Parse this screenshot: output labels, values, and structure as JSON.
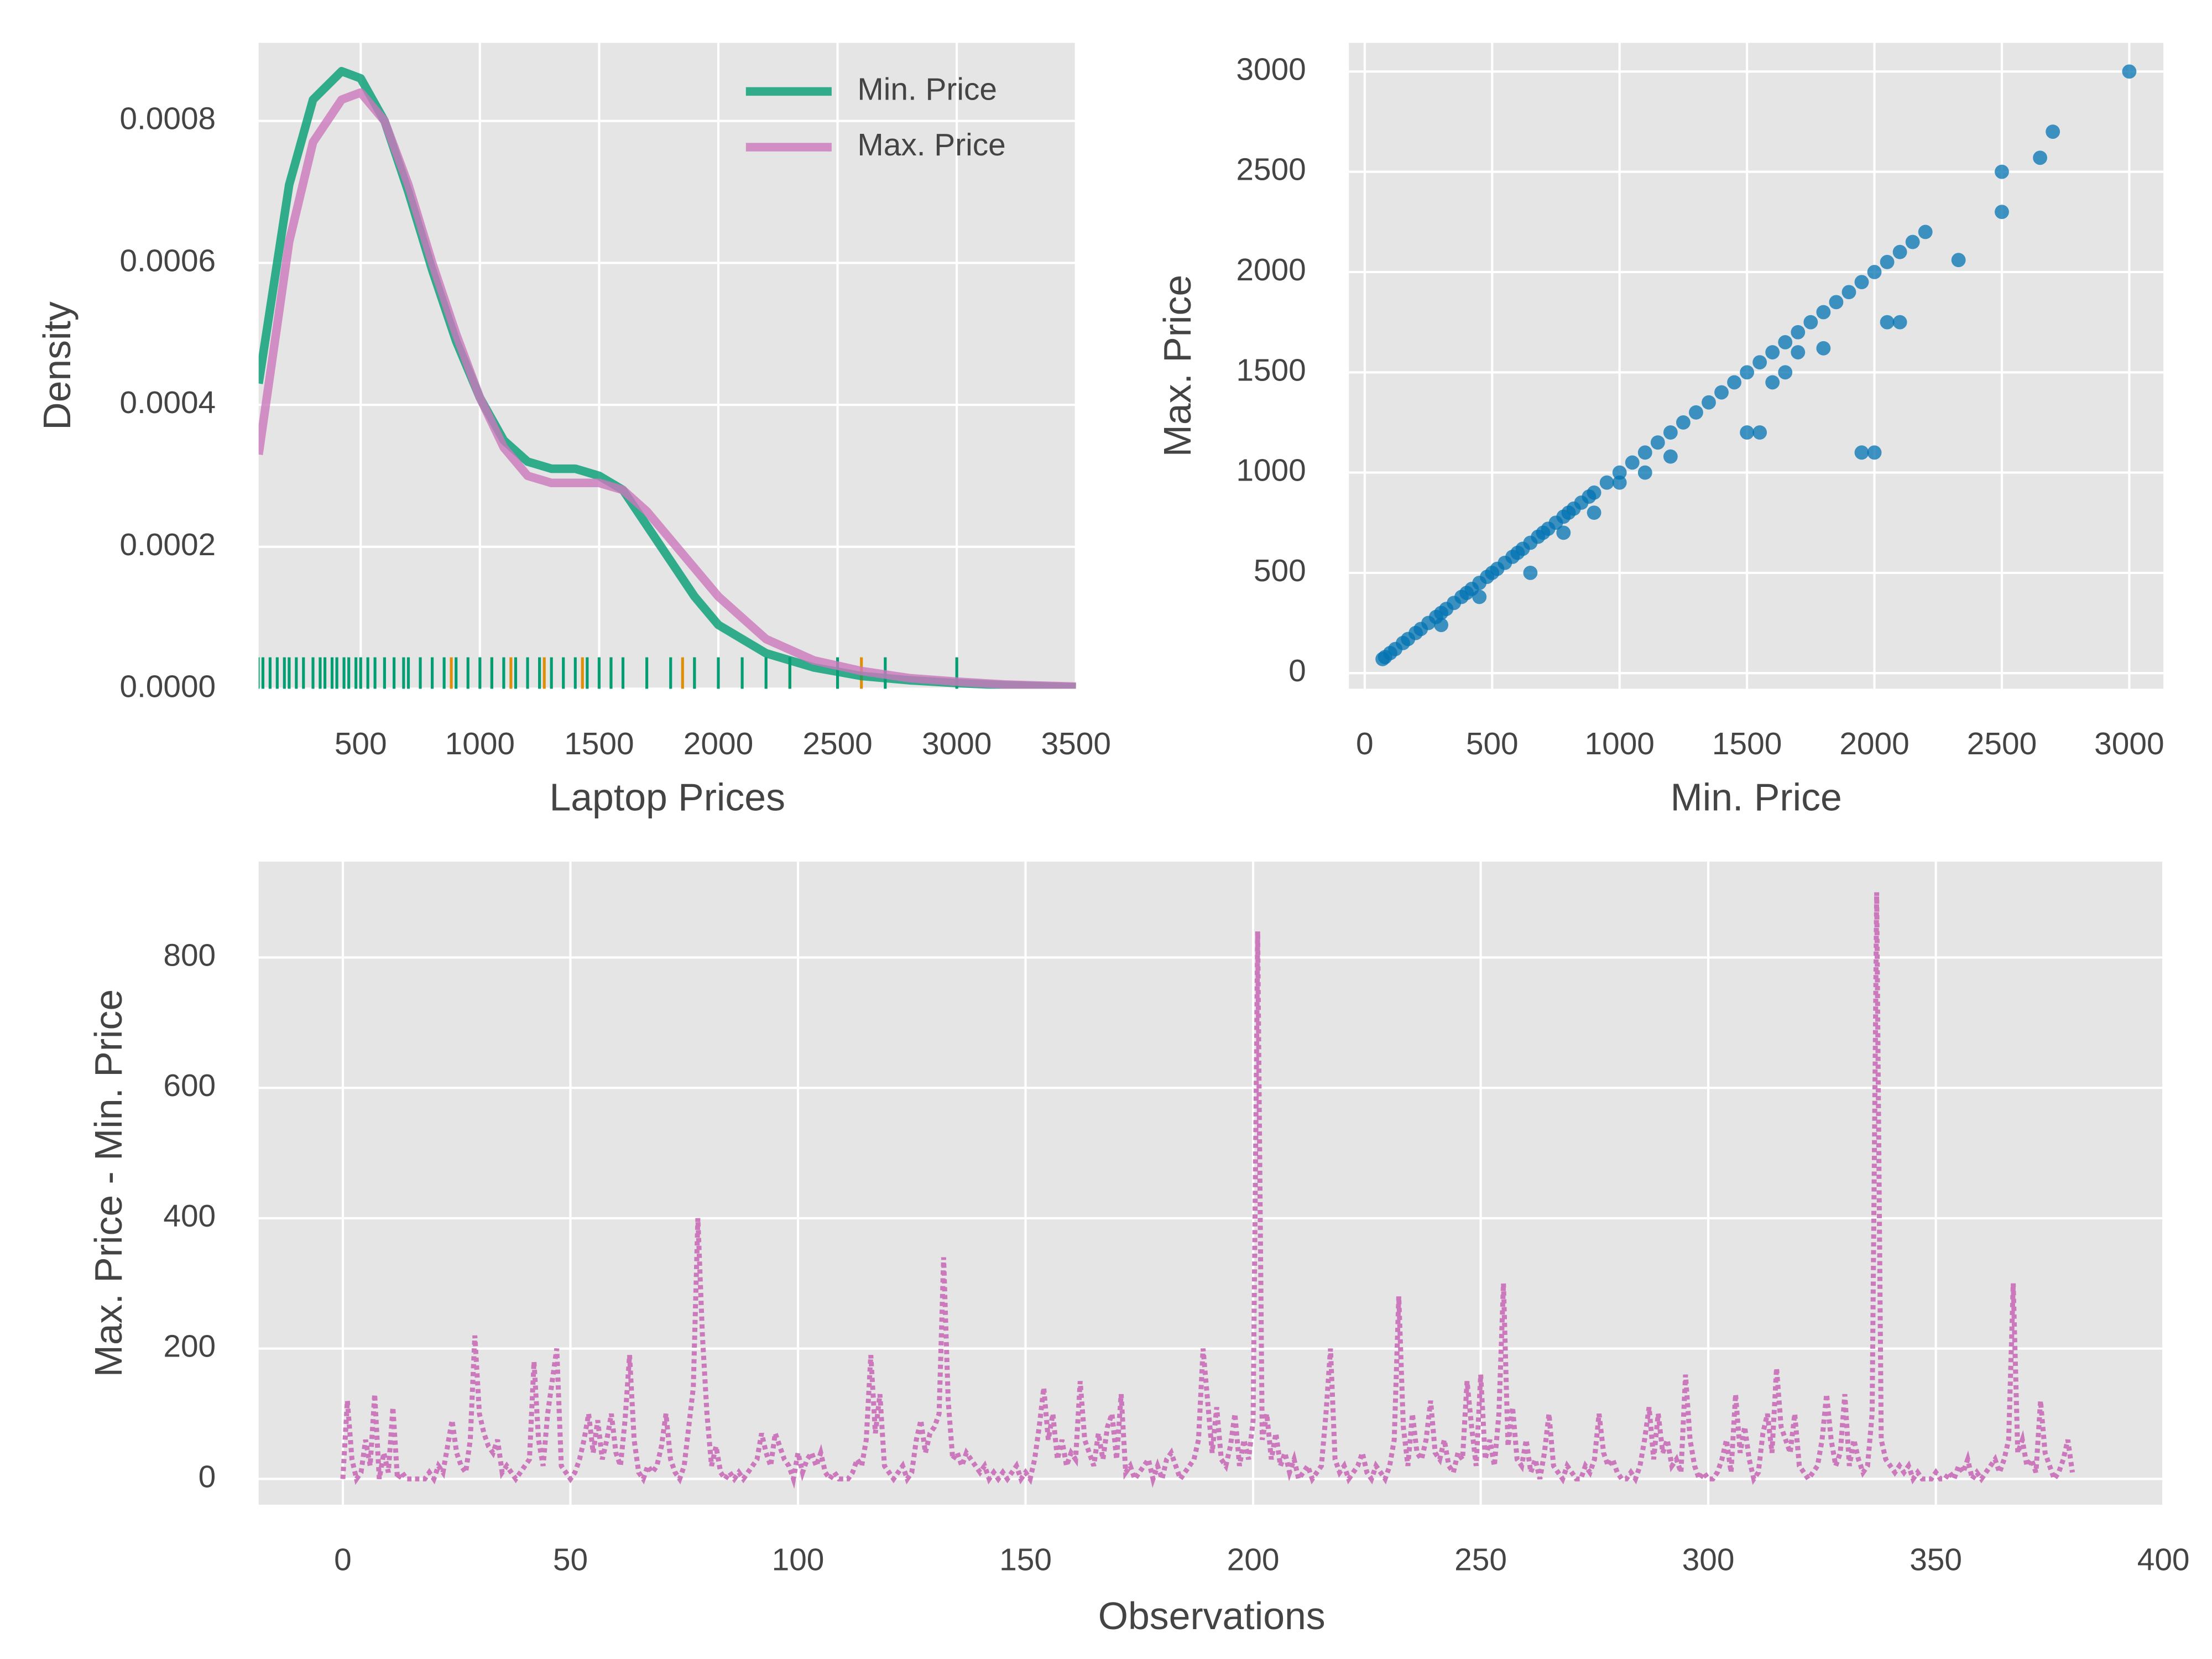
{
  "chart_data": [
    {
      "type": "line",
      "xlabel": "Laptop Prices",
      "ylabel": "Density",
      "legend": "upper right",
      "grid": true,
      "xlim": [
        72,
        3500
      ],
      "ylim": [
        0,
        0.00091
      ],
      "xticks": [
        500,
        1000,
        1500,
        2000,
        2500,
        3000,
        3500
      ],
      "yticks": [
        {
          "value": 0,
          "label": "0.0000"
        },
        {
          "value": 0.0002,
          "label": "0.0002"
        },
        {
          "value": 0.0004,
          "label": "0.0004"
        },
        {
          "value": 0.0006,
          "label": "0.0006"
        },
        {
          "value": 0.0008,
          "label": "0.0008"
        }
      ],
      "x": [
        72,
        200,
        300,
        420,
        500,
        600,
        700,
        800,
        900,
        1000,
        1100,
        1200,
        1300,
        1400,
        1500,
        1600,
        1700,
        1800,
        1900,
        2000,
        2200,
        2400,
        2600,
        2800,
        3000,
        3200,
        3500
      ],
      "series": [
        {
          "name": "Min. Price",
          "color": "#029e73",
          "rug_color": "#029e73",
          "values": [
            0.00043,
            0.00071,
            0.00083,
            0.00087,
            0.00086,
            0.0008,
            0.0007,
            0.00059,
            0.00049,
            0.00041,
            0.00035,
            0.00032,
            0.00031,
            0.00031,
            0.0003,
            0.00028,
            0.00023,
            0.00018,
            0.00013,
            9e-05,
            5e-05,
            3e-05,
            1.8e-05,
            1.2e-05,
            8e-06,
            5e-06,
            2e-06
          ],
          "rug": [
            70,
            90,
            120,
            150,
            180,
            200,
            230,
            260,
            300,
            330,
            350,
            380,
            400,
            430,
            450,
            480,
            500,
            530,
            560,
            600,
            640,
            680,
            700,
            750,
            800,
            850,
            900,
            950,
            1000,
            1050,
            1100,
            1150,
            1200,
            1250,
            1300,
            1350,
            1400,
            1450,
            1500,
            1550,
            1600,
            1700,
            1800,
            1900,
            2000,
            2100,
            2200,
            2300,
            2500,
            2700,
            3000
          ]
        },
        {
          "name": "Max. Price",
          "color": "#cc78bc",
          "rug_color": "#de8f05",
          "values": [
            0.00033,
            0.00063,
            0.00077,
            0.00083,
            0.00084,
            0.0008,
            0.00071,
            0.0006,
            0.0005,
            0.00041,
            0.00034,
            0.0003,
            0.00029,
            0.00029,
            0.00029,
            0.00028,
            0.00025,
            0.00021,
            0.00017,
            0.00013,
            7e-05,
            4e-05,
            2.5e-05,
            1.5e-05,
            1e-05,
            6e-06,
            3e-06
          ],
          "rug": [
            880,
            1050,
            1130,
            1270,
            1430,
            1550,
            1850,
            1900,
            2300,
            2600
          ]
        }
      ]
    },
    {
      "type": "scatter",
      "xlabel": "Min. Price",
      "ylabel": "Max. Price",
      "grid": true,
      "color": "#0173b2",
      "xlim": [
        -62,
        3134
      ],
      "ylim": [
        -78,
        3143
      ],
      "xticks": [
        0,
        500,
        1000,
        1500,
        2000,
        2500,
        3000
      ],
      "yticks": [
        0,
        500,
        1000,
        1500,
        2000,
        2500,
        3000
      ],
      "x": [
        70,
        80,
        100,
        120,
        150,
        170,
        200,
        220,
        250,
        280,
        300,
        320,
        350,
        380,
        400,
        420,
        450,
        480,
        500,
        520,
        550,
        580,
        600,
        620,
        650,
        680,
        700,
        720,
        750,
        780,
        800,
        820,
        850,
        880,
        900,
        950,
        1000,
        1050,
        1100,
        1150,
        1200,
        1250,
        1300,
        1350,
        1400,
        1450,
        1500,
        1550,
        1600,
        1650,
        1700,
        1750,
        1800,
        1850,
        1900,
        1950,
        2000,
        2050,
        2100,
        2150,
        2200,
        2330,
        2500,
        2500,
        2650,
        2700,
        3000,
        650,
        780,
        900,
        1100,
        1200,
        1500,
        1600,
        1700,
        1800,
        1950,
        2000,
        2050,
        2100,
        300,
        450,
        1550,
        1650,
        1000
      ],
      "values": [
        70,
        80,
        100,
        120,
        150,
        170,
        200,
        220,
        250,
        280,
        300,
        320,
        350,
        380,
        400,
        420,
        450,
        480,
        500,
        520,
        550,
        580,
        600,
        620,
        650,
        680,
        700,
        720,
        750,
        780,
        800,
        820,
        850,
        880,
        900,
        950,
        1000,
        1050,
        1100,
        1150,
        1200,
        1250,
        1300,
        1350,
        1400,
        1450,
        1500,
        1550,
        1600,
        1650,
        1700,
        1750,
        1800,
        1850,
        1900,
        1950,
        2000,
        2050,
        2100,
        2150,
        2200,
        2060,
        2500,
        2300,
        2570,
        2700,
        3000,
        500,
        700,
        800,
        1000,
        1080,
        1200,
        1450,
        1600,
        1620,
        1100,
        1100,
        1750,
        1750,
        240,
        380,
        1200,
        1500,
        950
      ]
    },
    {
      "type": "line",
      "xlabel": "Observations",
      "ylabel": "Max. Price - Min. Price",
      "grid": true,
      "color": "#cc78bc",
      "linestyle": "dotted",
      "xlim": [
        -18.5,
        400
      ],
      "ylim": [
        -39.5,
        947
      ],
      "xticks": [
        0,
        50,
        100,
        150,
        200,
        250,
        300,
        350,
        400
      ],
      "yticks": [
        0,
        200,
        400,
        600,
        800
      ],
      "x": [
        0,
        1,
        2,
        3,
        4,
        5,
        6,
        7,
        8,
        9,
        10,
        11,
        12,
        13,
        14,
        15,
        16,
        17,
        18,
        19,
        20,
        21,
        22,
        23,
        24,
        25,
        26,
        27,
        28,
        29,
        30,
        31,
        32,
        33,
        34,
        35,
        36,
        37,
        38,
        39,
        40,
        41,
        42,
        43,
        44,
        45,
        46,
        47,
        48,
        49,
        50,
        51,
        52,
        53,
        54,
        55,
        56,
        57,
        58,
        59,
        60,
        61,
        62,
        63,
        64,
        65,
        66,
        67,
        68,
        69,
        70,
        71,
        72,
        73,
        74,
        75,
        76,
        77,
        78,
        79,
        80,
        81,
        82,
        83,
        84,
        85,
        86,
        87,
        88,
        89,
        90,
        91,
        92,
        93,
        94,
        95,
        96,
        97,
        98,
        99,
        100,
        101,
        102,
        103,
        104,
        105,
        106,
        107,
        108,
        109,
        110,
        111,
        112,
        113,
        114,
        115,
        116,
        117,
        118,
        119,
        120,
        121,
        122,
        123,
        124,
        125,
        126,
        127,
        128,
        129,
        130,
        131,
        132,
        133,
        134,
        135,
        136,
        137,
        138,
        139,
        140,
        141,
        142,
        143,
        144,
        145,
        146,
        147,
        148,
        149,
        150,
        151,
        152,
        153,
        154,
        155,
        156,
        157,
        158,
        159,
        160,
        161,
        162,
        163,
        164,
        165,
        166,
        167,
        168,
        169,
        170,
        171,
        172,
        173,
        174,
        175,
        176,
        177,
        178,
        179,
        180,
        181,
        182,
        183,
        184,
        185,
        186,
        187,
        188,
        189,
        190,
        191,
        192,
        193,
        194,
        195,
        196,
        197,
        198,
        199,
        200,
        201,
        202,
        203,
        204,
        205,
        206,
        207,
        208,
        209,
        210,
        211,
        212,
        213,
        214,
        215,
        216,
        217,
        218,
        219,
        220,
        221,
        222,
        223,
        224,
        225,
        226,
        227,
        228,
        229,
        230,
        231,
        232,
        233,
        234,
        235,
        236,
        237,
        238,
        239,
        240,
        241,
        242,
        243,
        244,
        245,
        246,
        247,
        248,
        249,
        250,
        251,
        252,
        253,
        254,
        255,
        256,
        257,
        258,
        259,
        260,
        261,
        262,
        263,
        264,
        265,
        266,
        267,
        268,
        269,
        270,
        271,
        272,
        273,
        274,
        275,
        276,
        277,
        278,
        279,
        280,
        281,
        282,
        283,
        284,
        285,
        286,
        287,
        288,
        289,
        290,
        291,
        292,
        293,
        294,
        295,
        296,
        297,
        298,
        299,
        300,
        301,
        302,
        303,
        304,
        305,
        306,
        307,
        308,
        309,
        310,
        311,
        312,
        313,
        314,
        315,
        316,
        317,
        318,
        319,
        320,
        321,
        322,
        323,
        324,
        325,
        326,
        327,
        328,
        329,
        330,
        331,
        332,
        333,
        334,
        335,
        336,
        337,
        338,
        339,
        340,
        341,
        342,
        343,
        344,
        345,
        346,
        347,
        348,
        349,
        350,
        351,
        352,
        353,
        354,
        355,
        356,
        357,
        358,
        359,
        360,
        361,
        362,
        363,
        364,
        365,
        366,
        367,
        368,
        369,
        370,
        371,
        372,
        373,
        374,
        375,
        376,
        377,
        378,
        379,
        380
      ],
      "values": [
        0,
        120,
        30,
        0,
        10,
        60,
        20,
        130,
        0,
        40,
        10,
        110,
        0,
        10,
        0,
        0,
        0,
        0,
        0,
        10,
        0,
        20,
        10,
        50,
        90,
        40,
        20,
        10,
        60,
        220,
        100,
        70,
        50,
        40,
        60,
        10,
        20,
        10,
        0,
        10,
        20,
        30,
        180,
        60,
        20,
        100,
        150,
        200,
        20,
        10,
        0,
        10,
        30,
        60,
        100,
        40,
        90,
        30,
        60,
        100,
        40,
        20,
        90,
        190,
        60,
        10,
        0,
        20,
        10,
        20,
        50,
        100,
        30,
        10,
        0,
        20,
        80,
        140,
        400,
        220,
        100,
        20,
        50,
        10,
        0,
        10,
        0,
        10,
        0,
        10,
        20,
        30,
        70,
        40,
        20,
        70,
        50,
        30,
        20,
        0,
        40,
        10,
        30,
        40,
        20,
        40,
        10,
        0,
        10,
        0,
        0,
        0,
        10,
        30,
        20,
        60,
        190,
        70,
        130,
        20,
        10,
        0,
        10,
        20,
        0,
        10,
        60,
        90,
        40,
        70,
        80,
        100,
        340,
        120,
        30,
        40,
        20,
        40,
        30,
        20,
        10,
        20,
        0,
        10,
        0,
        10,
        0,
        10,
        20,
        0,
        10,
        0,
        30,
        80,
        140,
        60,
        100,
        30,
        60,
        20,
        40,
        30,
        150,
        60,
        40,
        20,
        70,
        30,
        80,
        100,
        30,
        130,
        10,
        20,
        0,
        10,
        20,
        30,
        0,
        20,
        0,
        30,
        40,
        20,
        0,
        10,
        20,
        30,
        60,
        200,
        120,
        40,
        110,
        30,
        20,
        50,
        100,
        20,
        60,
        30,
        90,
        840,
        60,
        100,
        30,
        70,
        20,
        40,
        10,
        30,
        0,
        10,
        20,
        0,
        10,
        20,
        100,
        200,
        30,
        10,
        20,
        0,
        10,
        20,
        40,
        10,
        0,
        20,
        10,
        0,
        20,
        60,
        280,
        80,
        20,
        100,
        40,
        30,
        60,
        120,
        40,
        30,
        60,
        20,
        10,
        40,
        30,
        150,
        80,
        20,
        160,
        30,
        60,
        20,
        100,
        300,
        50,
        110,
        30,
        20,
        60,
        10,
        30,
        0,
        40,
        100,
        20,
        10,
        0,
        20,
        10,
        0,
        0,
        20,
        10,
        30,
        100,
        40,
        20,
        30,
        10,
        0,
        0,
        10,
        0,
        20,
        60,
        110,
        30,
        100,
        40,
        60,
        20,
        30,
        10,
        160,
        60,
        20,
        0,
        10,
        0,
        0,
        10,
        30,
        60,
        10,
        130,
        40,
        80,
        30,
        0,
        10,
        70,
        100,
        40,
        170,
        80,
        60,
        40,
        100,
        20,
        10,
        0,
        10,
        20,
        60,
        130,
        60,
        20,
        40,
        130,
        20,
        60,
        30,
        10,
        20,
        100,
        900,
        60,
        30,
        20,
        10,
        20,
        10,
        20,
        0,
        10,
        0,
        0,
        0,
        10,
        0,
        0,
        10,
        0,
        20,
        10,
        30,
        0,
        10,
        0,
        10,
        20,
        30,
        10,
        30,
        60,
        300,
        40,
        60,
        20,
        30,
        10,
        120,
        40,
        20,
        0,
        10,
        30,
        60,
        10
      ]
    }
  ]
}
